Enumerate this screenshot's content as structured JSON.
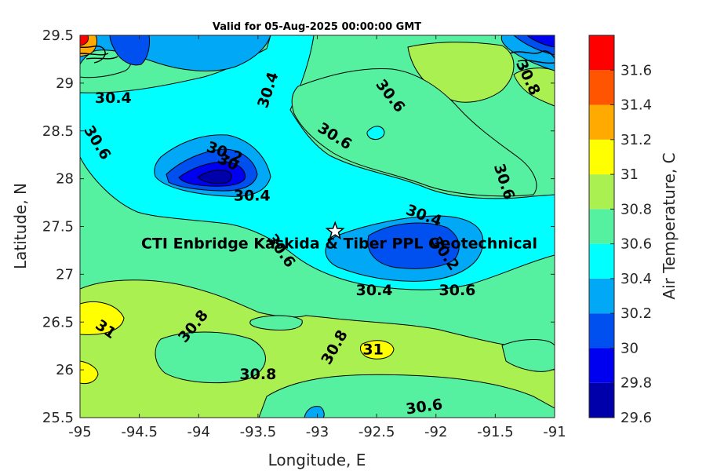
{
  "chart_data": {
    "type": "heatmap",
    "subtype": "filled-contour map",
    "title": "Valid for 05-Aug-2025 00:00:00 GMT",
    "xlabel": "Longitude, E",
    "ylabel": "Latitude, N",
    "xlim": [
      -95,
      -91
    ],
    "ylim": [
      25.5,
      29.5
    ],
    "xticks": [
      -95,
      -94.5,
      -94,
      -93.5,
      -93,
      -92.5,
      -92,
      -91.5,
      -91
    ],
    "yticks": [
      25.5,
      26,
      26.5,
      27,
      27.5,
      28,
      28.5,
      29,
      29.5
    ],
    "colorbar": {
      "label": "Air Temperature, C",
      "levels": [
        29.6,
        29.8,
        30.0,
        30.2,
        30.4,
        30.6,
        30.8,
        31.0,
        31.2,
        31.4,
        31.6,
        31.8
      ],
      "ticks": [
        29.6,
        29.8,
        30,
        30.2,
        30.4,
        30.6,
        30.8,
        31,
        31.2,
        31.4,
        31.6
      ],
      "colors": [
        "#0000aa",
        "#0000f0",
        "#0050f0",
        "#00a8f5",
        "#00ffff",
        "#55f0a0",
        "#aaf050",
        "#ffff00",
        "#ffaa00",
        "#ff5500",
        "#ff0000",
        "#aa0000"
      ]
    },
    "contour_labels": [
      {
        "text": "30.4",
        "lon": -94.72,
        "lat": 28.85,
        "rot": 0
      },
      {
        "text": "30.4",
        "lon": -93.42,
        "lat": 28.93,
        "rot": -72
      },
      {
        "text": "30.6",
        "lon": -94.85,
        "lat": 28.38,
        "rot": 58
      },
      {
        "text": "30.2",
        "lon": -93.78,
        "lat": 28.28,
        "rot": 20
      },
      {
        "text": "30",
        "lon": -93.75,
        "lat": 28.18,
        "rot": 25
      },
      {
        "text": "30.4",
        "lon": -93.55,
        "lat": 27.83,
        "rot": 0
      },
      {
        "text": "30.6",
        "lon": -92.85,
        "lat": 28.45,
        "rot": 32
      },
      {
        "text": "30.6",
        "lon": -92.38,
        "lat": 28.87,
        "rot": 52
      },
      {
        "text": "30.8",
        "lon": -91.22,
        "lat": 29.06,
        "rot": 65
      },
      {
        "text": "30.6",
        "lon": -91.42,
        "lat": 27.97,
        "rot": 72
      },
      {
        "text": "30.4",
        "lon": -92.1,
        "lat": 27.62,
        "rot": 20
      },
      {
        "text": "30.2",
        "lon": -91.92,
        "lat": 27.22,
        "rot": 55
      },
      {
        "text": "30.6",
        "lon": -93.3,
        "lat": 27.25,
        "rot": 55
      },
      {
        "text": "30.4",
        "lon": -92.52,
        "lat": 26.84,
        "rot": 0
      },
      {
        "text": "30.6",
        "lon": -91.82,
        "lat": 26.84,
        "rot": 0
      },
      {
        "text": "31",
        "lon": -94.78,
        "lat": 26.43,
        "rot": 35
      },
      {
        "text": "30.8",
        "lon": -94.05,
        "lat": 26.46,
        "rot": -50
      },
      {
        "text": "30.8",
        "lon": -92.86,
        "lat": 26.24,
        "rot": -60
      },
      {
        "text": "31",
        "lon": -92.53,
        "lat": 26.22,
        "rot": 0
      },
      {
        "text": "30.8",
        "lon": -93.5,
        "lat": 25.96,
        "rot": 0
      },
      {
        "text": "30.6",
        "lon": -92.1,
        "lat": 25.62,
        "rot": -8
      }
    ],
    "site": {
      "name": "CTI Enbridge  Kaskida & Tiber PPL Geotechnical",
      "lon": -92.85,
      "lat": 27.45,
      "marker": "star"
    }
  }
}
